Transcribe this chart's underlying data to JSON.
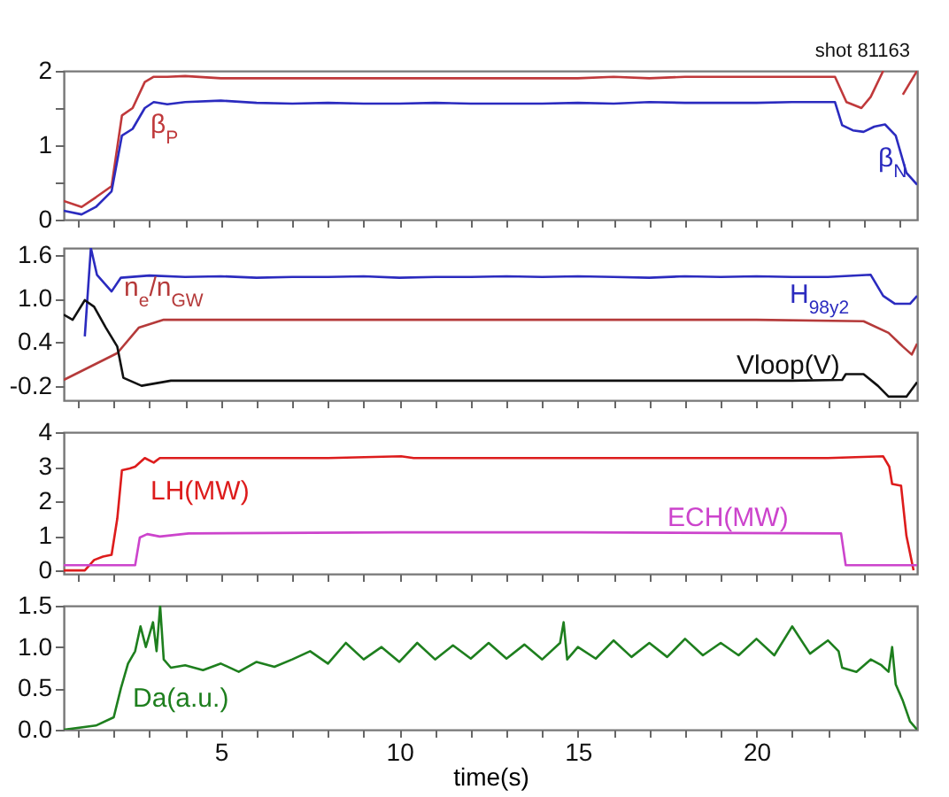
{
  "chart_data": [
    {
      "type": "line",
      "title": "shot 81163",
      "xlim": [
        0.6,
        24.5
      ],
      "xticks": [
        {
          "value": 1,
          "label": null
        },
        {
          "value": 2,
          "label": null
        },
        {
          "value": 3,
          "label": null
        },
        {
          "value": 4,
          "label": null
        },
        5,
        {
          "value": 6,
          "label": null
        },
        {
          "value": 7,
          "label": null
        },
        {
          "value": 8,
          "label": null
        },
        {
          "value": 9,
          "label": null
        },
        10,
        {
          "value": 11,
          "label": null
        },
        {
          "value": 12,
          "label": null
        },
        {
          "value": 13,
          "label": null
        },
        {
          "value": 14,
          "label": null
        },
        15,
        {
          "value": 16,
          "label": null
        },
        {
          "value": 17,
          "label": null
        },
        {
          "value": 18,
          "label": null
        },
        {
          "value": 19,
          "label": null
        },
        20,
        {
          "value": 21,
          "label": null
        },
        {
          "value": 22,
          "label": null
        },
        {
          "value": 23,
          "label": null
        },
        {
          "value": 24,
          "label": null
        }
      ],
      "tick_labels": "y",
      "ylim": [
        0,
        2
      ],
      "yticks": [
        0,
        {
          "value": 0.5,
          "label": null
        },
        1,
        {
          "value": 1.5,
          "label": null
        },
        2
      ],
      "grid": false,
      "series": [
        {
          "name": "β$_{P}$",
          "color": "#c0393b",
          "x": [
            0.6,
            1.1,
            1.5,
            1.94,
            2.23,
            2.53,
            2.87,
            3.12,
            3.5,
            4,
            5,
            6,
            7,
            8,
            9,
            10,
            11,
            12,
            13,
            14,
            15,
            16,
            17,
            18,
            19,
            20,
            21,
            22.2,
            22.52,
            22.94,
            23.2,
            23.55,
            23.56,
            24.1,
            24.5
          ],
          "values": [
            0.25,
            0.17,
            0.3,
            0.45,
            1.4,
            1.5,
            1.85,
            1.92,
            1.92,
            1.93,
            1.9,
            1.9,
            1.9,
            1.9,
            1.9,
            1.9,
            1.9,
            1.9,
            1.9,
            1.9,
            1.9,
            1.92,
            1.9,
            1.92,
            1.92,
            1.92,
            1.92,
            1.92,
            1.58,
            1.5,
            1.65,
            2.0,
            null,
            1.68,
            2.0
          ]
        },
        {
          "name": "β$_{N}$",
          "color": "#2b2bbf",
          "x": [
            0.6,
            1.1,
            1.5,
            1.94,
            2.23,
            2.53,
            2.87,
            3.12,
            3.5,
            4,
            5,
            6,
            7,
            8,
            9,
            10,
            11,
            12,
            13,
            14,
            15,
            16,
            17,
            18,
            19,
            20,
            21,
            22.2,
            22.4,
            22.7,
            23.0,
            23.3,
            23.6,
            23.9,
            24.2,
            24.5
          ],
          "values": [
            0.12,
            0.07,
            0.17,
            0.38,
            1.13,
            1.22,
            1.5,
            1.58,
            1.55,
            1.58,
            1.6,
            1.57,
            1.56,
            1.57,
            1.56,
            1.56,
            1.57,
            1.56,
            1.56,
            1.56,
            1.57,
            1.56,
            1.58,
            1.57,
            1.57,
            1.57,
            1.58,
            1.58,
            1.27,
            1.2,
            1.18,
            1.25,
            1.28,
            1.13,
            0.63,
            0.47
          ]
        }
      ]
    },
    {
      "type": "line",
      "xlim": [
        0.6,
        24.5
      ],
      "xticks": [
        {
          "value": 1,
          "label": null
        },
        {
          "value": 2,
          "label": null
        },
        {
          "value": 3,
          "label": null
        },
        {
          "value": 4,
          "label": null
        },
        5,
        {
          "value": 6,
          "label": null
        },
        {
          "value": 7,
          "label": null
        },
        {
          "value": 8,
          "label": null
        },
        {
          "value": 9,
          "label": null
        },
        10,
        {
          "value": 11,
          "label": null
        },
        {
          "value": 12,
          "label": null
        },
        {
          "value": 13,
          "label": null
        },
        {
          "value": 14,
          "label": null
        },
        15,
        {
          "value": 16,
          "label": null
        },
        {
          "value": 17,
          "label": null
        },
        {
          "value": 18,
          "label": null
        },
        {
          "value": 19,
          "label": null
        },
        20,
        {
          "value": 21,
          "label": null
        },
        {
          "value": 22,
          "label": null
        },
        {
          "value": 23,
          "label": null
        },
        {
          "value": 24,
          "label": null
        }
      ],
      "tick_labels": "y",
      "ylim": [
        -0.4,
        1.7
      ],
      "yticks": [
        {
          "value": -0.2,
          "label": "-0.2"
        },
        {
          "value": 0.4,
          "label": "0.4"
        },
        {
          "value": 1,
          "label": "1.0"
        },
        {
          "value": 1.6,
          "label": "1.6"
        }
      ],
      "grid": false,
      "series": [
        {
          "name": "H$_{98y2}$",
          "color": "#2b2bbf",
          "x": [
            1.19,
            1.36,
            1.53,
            1.94,
            2.2,
            3,
            4,
            5,
            6,
            7,
            8,
            9,
            10,
            11,
            12,
            13,
            14,
            15,
            16,
            17,
            18,
            19,
            20,
            21,
            22,
            23.2,
            23.55,
            23.88,
            24.3,
            24.5
          ],
          "values": [
            0.48,
            1.7,
            1.33,
            1.1,
            1.29,
            1.32,
            1.3,
            1.31,
            1.29,
            1.3,
            1.3,
            1.31,
            1.29,
            1.3,
            1.3,
            1.31,
            1.3,
            1.31,
            1.3,
            1.29,
            1.31,
            1.3,
            1.31,
            1.3,
            1.3,
            1.33,
            1.04,
            0.93,
            0.93,
            1.04
          ]
        },
        {
          "name": "n$_{e}$/n$_{GW}$",
          "color": "#b53a3a",
          "x": [
            0.6,
            2.1,
            2.7,
            3.4,
            5,
            8,
            11,
            14,
            17,
            20,
            23.0,
            23.7,
            24.1,
            24.35,
            24.5
          ],
          "values": [
            -0.12,
            0.25,
            0.6,
            0.71,
            0.71,
            0.71,
            0.71,
            0.71,
            0.71,
            0.71,
            0.69,
            0.53,
            0.34,
            0.23,
            0.38
          ]
        },
        {
          "name": "Vloop(V)",
          "color": "#111111",
          "x": [
            0.6,
            0.85,
            1.19,
            1.45,
            1.78,
            2.1,
            2.27,
            2.78,
            3.6,
            6,
            9,
            12,
            15,
            18,
            21,
            22.4,
            22.5,
            23.0,
            23.4,
            23.7,
            24.2,
            24.5
          ],
          "values": [
            0.78,
            0.71,
            0.98,
            0.89,
            0.6,
            0.34,
            -0.09,
            -0.2,
            -0.13,
            -0.13,
            -0.13,
            -0.13,
            -0.13,
            -0.13,
            -0.13,
            -0.12,
            -0.04,
            -0.04,
            -0.2,
            -0.35,
            -0.35,
            -0.15
          ]
        }
      ]
    },
    {
      "type": "line",
      "xlim": [
        0.6,
        24.5
      ],
      "xticks": [
        {
          "value": 1,
          "label": null
        },
        {
          "value": 2,
          "label": null
        },
        {
          "value": 3,
          "label": null
        },
        {
          "value": 4,
          "label": null
        },
        5,
        {
          "value": 6,
          "label": null
        },
        {
          "value": 7,
          "label": null
        },
        {
          "value": 8,
          "label": null
        },
        {
          "value": 9,
          "label": null
        },
        10,
        {
          "value": 11,
          "label": null
        },
        {
          "value": 12,
          "label": null
        },
        {
          "value": 13,
          "label": null
        },
        {
          "value": 14,
          "label": null
        },
        15,
        {
          "value": 16,
          "label": null
        },
        {
          "value": 17,
          "label": null
        },
        {
          "value": 18,
          "label": null
        },
        {
          "value": 19,
          "label": null
        },
        20,
        {
          "value": 21,
          "label": null
        },
        {
          "value": 22,
          "label": null
        },
        {
          "value": 23,
          "label": null
        },
        {
          "value": 24,
          "label": null
        }
      ],
      "tick_labels": "y",
      "ylim": [
        -0.1,
        4
      ],
      "yticks": [
        0,
        1,
        2,
        3,
        4
      ],
      "grid": false,
      "series": [
        {
          "name": "LH(MW)",
          "color": "#dd1c1c",
          "x": [
            0.6,
            1.19,
            1.45,
            1.7,
            1.94,
            2.1,
            2.23,
            2.45,
            2.6,
            2.87,
            3.12,
            3.29,
            5,
            8,
            10.05,
            10.4,
            13,
            16,
            19,
            22,
            23.55,
            23.72,
            23.8,
            24.05,
            24.2,
            24.4
          ],
          "values": [
            0,
            0,
            0.3,
            0.4,
            0.45,
            1.5,
            2.9,
            2.95,
            3.0,
            3.25,
            3.12,
            3.25,
            3.25,
            3.25,
            3.3,
            3.25,
            3.25,
            3.25,
            3.25,
            3.25,
            3.3,
            3.0,
            2.5,
            2.45,
            1.0,
            0
          ]
        },
        {
          "name": "ECH(MW)",
          "color": "#cc44cc",
          "x": [
            0.6,
            2.6,
            2.73,
            2.94,
            3.29,
            4.1,
            10,
            15,
            22.37,
            22.5,
            24.5
          ],
          "values": [
            0.15,
            0.15,
            0.95,
            1.05,
            0.98,
            1.07,
            1.1,
            1.1,
            1.07,
            0.15,
            0.15
          ]
        }
      ]
    },
    {
      "type": "line",
      "xlabel": "time(s)",
      "xlim": [
        0.6,
        24.5
      ],
      "xticks": [
        {
          "value": 1,
          "label": null
        },
        {
          "value": 2,
          "label": null
        },
        {
          "value": 3,
          "label": null
        },
        {
          "value": 4,
          "label": null
        },
        5,
        {
          "value": 6,
          "label": null
        },
        {
          "value": 7,
          "label": null
        },
        {
          "value": 8,
          "label": null
        },
        {
          "value": 9,
          "label": null
        },
        10,
        {
          "value": 11,
          "label": null
        },
        {
          "value": 12,
          "label": null
        },
        {
          "value": 13,
          "label": null
        },
        {
          "value": 14,
          "label": null
        },
        15,
        {
          "value": 16,
          "label": null
        },
        {
          "value": 17,
          "label": null
        },
        {
          "value": 18,
          "label": null
        },
        {
          "value": 19,
          "label": null
        },
        20,
        {
          "value": 21,
          "label": null
        },
        {
          "value": 22,
          "label": null
        },
        {
          "value": 23,
          "label": null
        },
        {
          "value": 24,
          "label": null
        }
      ],
      "ylim": [
        0,
        1.5
      ],
      "yticks": [
        {
          "value": 0,
          "label": "0.0"
        },
        {
          "value": 0.5,
          "label": "0.5"
        },
        {
          "value": 1,
          "label": "1.0"
        },
        {
          "value": 1.5,
          "label": "1.5"
        }
      ],
      "grid": false,
      "series": [
        {
          "name": "Da(a.u.)",
          "color": "#1e7f1e",
          "x": [
            0.6,
            1.5,
            2.0,
            2.2,
            2.4,
            2.6,
            2.75,
            2.9,
            3.1,
            3.2,
            3.3,
            3.4,
            3.6,
            4.0,
            4.5,
            5,
            5.5,
            6,
            6.5,
            7,
            7.5,
            8,
            8.5,
            9,
            9.5,
            10,
            10.5,
            11,
            11.5,
            12,
            12.5,
            13,
            13.5,
            14,
            14.5,
            14.6,
            14.7,
            15,
            15.5,
            16,
            16.5,
            17,
            17.5,
            18,
            18.5,
            19,
            19.5,
            20,
            20.5,
            21,
            21.5,
            22,
            22.3,
            22.4,
            22.8,
            23.2,
            23.5,
            23.7,
            23.8,
            23.9,
            24.1,
            24.3,
            24.5
          ],
          "values": [
            0,
            0.05,
            0.15,
            0.5,
            0.8,
            0.95,
            1.25,
            1.0,
            1.3,
            0.95,
            1.5,
            0.85,
            0.75,
            0.78,
            0.72,
            0.8,
            0.7,
            0.82,
            0.76,
            0.85,
            0.95,
            0.8,
            1.05,
            0.85,
            1.0,
            0.82,
            1.05,
            0.85,
            1.02,
            0.86,
            1.05,
            0.86,
            1.03,
            0.85,
            1.05,
            1.3,
            0.85,
            1.0,
            0.86,
            1.08,
            0.88,
            1.05,
            0.88,
            1.1,
            0.9,
            1.05,
            0.9,
            1.1,
            0.9,
            1.25,
            0.92,
            1.08,
            0.95,
            0.75,
            0.7,
            0.85,
            0.78,
            0.7,
            1.0,
            0.55,
            0.35,
            0.1,
            0
          ]
        }
      ]
    }
  ]
}
